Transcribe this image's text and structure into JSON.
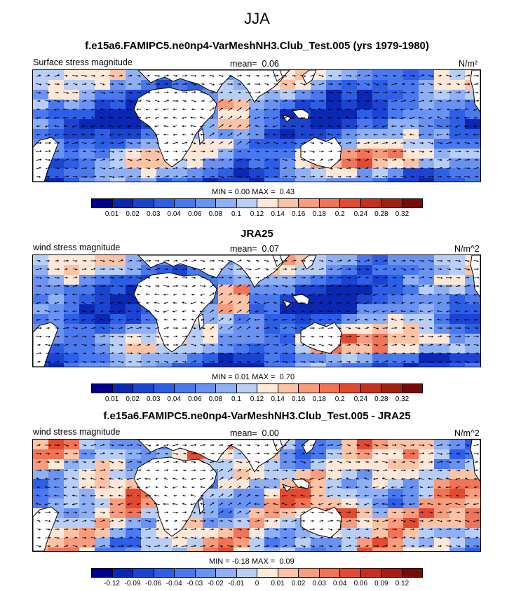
{
  "title": "JJA",
  "panels": [
    {
      "title": "f.e15a6.FAMIPC5.ne0np4-VarMeshNH3.Club_Test.005 (yrs 1979-1980)",
      "left_label": "Surface stress magnitude",
      "mean_label": "mean=",
      "mean_value": "0.06",
      "units": "N/m²",
      "min_label": "MIN =",
      "min_value": "0.00",
      "max_label": "MAX =",
      "max_value": "0.43",
      "kind": "field"
    },
    {
      "title": "JRA25",
      "left_label": "wind stress magnitude",
      "mean_label": "mean=",
      "mean_value": "0.07",
      "units": "N/m^2",
      "min_label": "MIN =",
      "min_value": "0.01",
      "max_label": "MAX =",
      "max_value": "0.70",
      "kind": "field"
    },
    {
      "title": "f.e15a6.FAMIPC5.ne0np4-VarMeshNH3.Club_Test.005 - JRA25",
      "left_label": "wind stress magnitude",
      "mean_label": "mean=",
      "mean_value": "0.00",
      "units": "N/m^2",
      "min_label": "MIN =",
      "min_value": "-0.18",
      "max_label": "MAX =",
      "max_value": "0.09",
      "kind": "diff"
    }
  ],
  "colorbar_field": {
    "colors": [
      "#00008b",
      "#0a28b4",
      "#1c44d2",
      "#2d5ee6",
      "#4a78ee",
      "#6a92f2",
      "#8fb0f4",
      "#b8cef6",
      "#ffe8d8",
      "#fcc3a6",
      "#f79c7d",
      "#f07458",
      "#e24a32",
      "#c8301e",
      "#a51e12",
      "#7a0a06"
    ],
    "ticks": [
      "0.01",
      "0.02",
      "0.03",
      "0.04",
      "0.06",
      "0.08",
      "0.1",
      "0.12",
      "0.14",
      "0.16",
      "0.18",
      "0.2",
      "0.24",
      "0.28",
      "0.32"
    ]
  },
  "colorbar_diff": {
    "colors": [
      "#00008b",
      "#0a28b4",
      "#1c44d2",
      "#2d5ee6",
      "#4a78ee",
      "#6a92f2",
      "#8fb0f4",
      "#b8cef6",
      "#ffe8d8",
      "#fcc3a6",
      "#f79c7d",
      "#f07458",
      "#e24a32",
      "#c8301e",
      "#a51e12",
      "#7a0a06"
    ],
    "ticks": [
      "-0.12",
      "-0.09",
      "-0.06",
      "-0.04",
      "-0.03",
      "-0.02",
      "-0.01",
      "0",
      "0.01",
      "0.02",
      "0.03",
      "0.04",
      "0.06",
      "0.09",
      "0.12"
    ]
  }
}
